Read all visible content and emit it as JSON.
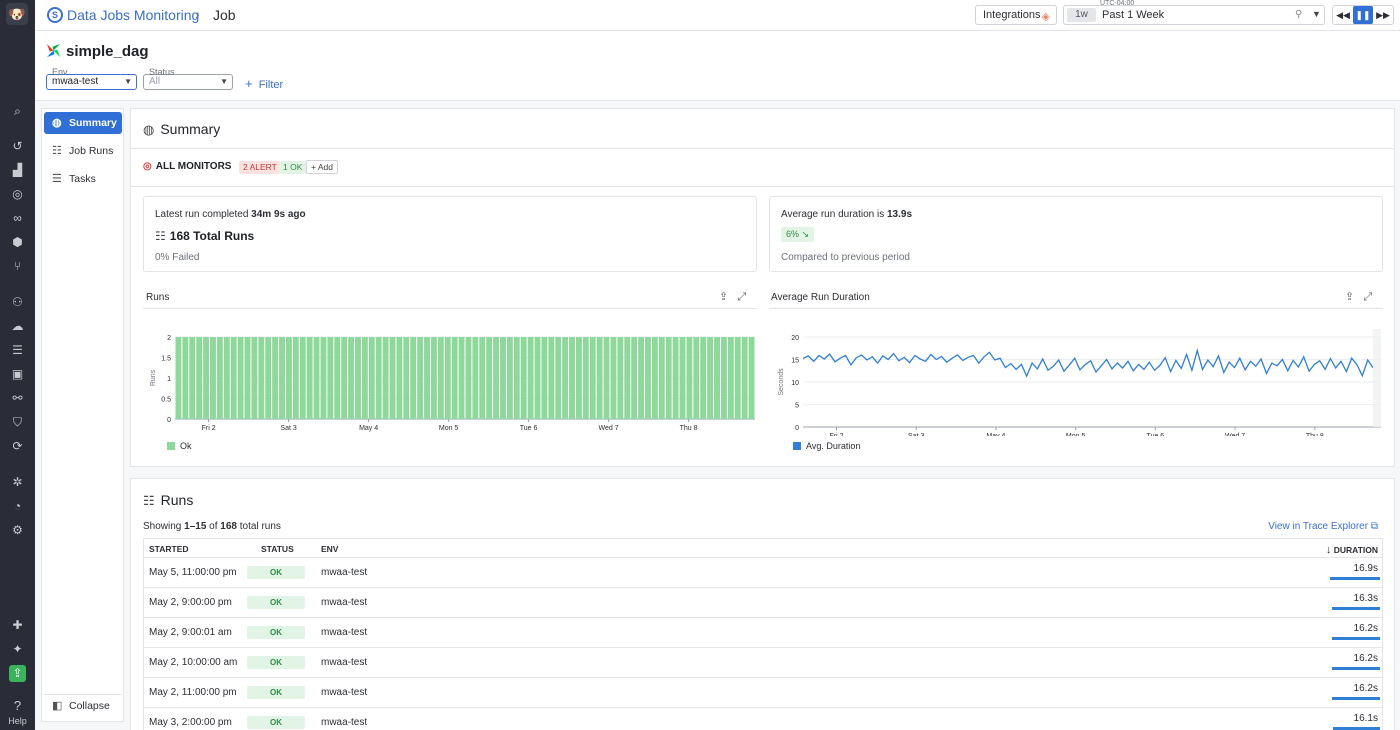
{
  "rail": {
    "icons": [
      "search-icon",
      "history-icon",
      "chart-icon",
      "monitor-icon",
      "binoculars-icon",
      "cube-icon",
      "git-icon",
      "apm-icon",
      "cloud-icon",
      "list-icon",
      "dashboard-icon",
      "link-icon",
      "shield-icon",
      "refresh-icon",
      "bug-icon",
      "gauge-icon",
      "robot-icon",
      "puzzle-icon",
      "sparkle-icon",
      "upload-icon"
    ],
    "help_label": "Help"
  },
  "topbar": {
    "breadcrumb_root": "Data Jobs Monitoring",
    "breadcrumb_current": "Job",
    "integrations_label": "Integrations",
    "timezone": "UTC-04:00",
    "time_tag": "1w",
    "time_value": "Past 1 Week"
  },
  "header": {
    "title": "simple_dag",
    "env_label": "Env",
    "env_value": "mwaa-test",
    "status_label": "Status",
    "status_placeholder": "All",
    "filter_label": "Filter"
  },
  "sidenav": {
    "items": [
      {
        "label": "Summary",
        "icon": "globe-icon",
        "active": true
      },
      {
        "label": "Job Runs",
        "icon": "runs-icon",
        "active": false
      },
      {
        "label": "Tasks",
        "icon": "tasks-icon",
        "active": false
      }
    ],
    "collapse_label": "Collapse"
  },
  "summary": {
    "title": "Summary",
    "monitors_label": "ALL MONITORS",
    "alert_badge": "2 ALERT",
    "ok_badge": "1 OK",
    "add_label": "Add",
    "latest_prefix": "Latest run completed",
    "latest_value": "34m 9s ago",
    "total_runs": "168 Total Runs",
    "failed": "0% Failed",
    "avg_prefix": "Average run duration is",
    "avg_value": "13.9s",
    "change": "6% ↘",
    "compared": "Compared to previous period"
  },
  "chart_data": [
    {
      "type": "bar",
      "title": "Runs",
      "ylabel": "Runs",
      "ylim": [
        0,
        2
      ],
      "yticks": [
        "0",
        "0.5",
        "1",
        "1.5",
        "2"
      ],
      "xticks": [
        "Fri 2",
        "Sat 3",
        "May 4",
        "Mon 5",
        "Tue 6",
        "Wed 7",
        "Thu 8"
      ],
      "series": [
        {
          "name": "Ok",
          "color": "#8fd89c",
          "values": [
            2,
            2,
            2,
            2,
            2,
            2,
            2,
            2,
            2,
            2,
            2,
            2,
            2,
            2,
            2,
            2,
            2,
            2,
            2,
            2,
            2,
            2,
            2,
            2,
            2,
            2,
            2,
            2,
            2,
            2,
            2,
            2,
            2,
            2,
            2,
            2,
            2,
            2,
            2,
            2,
            2,
            2,
            2,
            2,
            2,
            2,
            2,
            2,
            2,
            2,
            2,
            2,
            2,
            2,
            2,
            2,
            2,
            2,
            2,
            2,
            2,
            2,
            2,
            2,
            2,
            2,
            2,
            2,
            2,
            2,
            2,
            2,
            2,
            2,
            2,
            2,
            2,
            2,
            2,
            2,
            2,
            2,
            2,
            2
          ]
        }
      ],
      "grid": true,
      "legend": "bottom-left"
    },
    {
      "type": "line",
      "title": "Average Run Duration",
      "ylabel": "Seconds",
      "ylim": [
        0,
        20
      ],
      "yticks": [
        "0",
        "5",
        "10",
        "15",
        "20"
      ],
      "xticks": [
        "Fri 2",
        "Sat 3",
        "May 4",
        "Mon 5",
        "Tue 6",
        "Wed 7",
        "Thu 8"
      ],
      "series": [
        {
          "name": "Avg. Duration",
          "color": "#2f7fd6",
          "values": [
            15.2,
            15.8,
            14.6,
            15.9,
            15.1,
            16.2,
            14.5,
            15.3,
            15.9,
            13.8,
            15.4,
            16.0,
            14.9,
            15.6,
            14.2,
            15.8,
            15.0,
            16.3,
            14.7,
            15.5,
            14.3,
            15.9,
            15.1,
            14.6,
            16.1,
            15.0,
            15.7,
            14.4,
            15.3,
            16.0,
            14.8,
            15.5,
            15.9,
            14.2,
            15.6,
            16.6,
            14.9,
            15.3,
            13.2,
            14.1,
            12.8,
            13.9,
            11.3,
            14.2,
            12.9,
            15.1,
            12.6,
            13.5,
            14.9,
            12.4,
            13.8,
            15.3,
            12.7,
            13.9,
            14.7,
            12.2,
            13.6,
            15.0,
            12.9,
            14.2,
            13.1,
            14.6,
            12.5,
            13.9,
            12.8,
            14.4,
            12.6,
            13.7,
            15.4,
            12.3,
            14.8,
            13.0,
            16.1,
            12.6,
            17.0,
            12.8,
            14.9,
            13.4,
            15.8,
            12.1,
            14.4,
            13.2,
            15.3,
            12.7,
            14.6,
            13.5,
            15.1,
            11.9,
            14.2,
            13.6,
            15.0,
            12.5,
            14.8,
            13.3,
            15.6,
            12.4,
            13.9,
            14.7,
            12.8,
            15.2,
            13.1,
            14.6,
            12.3,
            15.3,
            13.8,
            11.4,
            14.9,
            13.2
          ]
        }
      ],
      "grid": true,
      "legend": "bottom-left"
    }
  ],
  "runs": {
    "title": "Runs",
    "showing_prefix": "Showing",
    "showing_range": "1–15",
    "showing_of": "of",
    "showing_total": "168",
    "showing_suffix": "total runs",
    "trace_link": "View in Trace Explorer",
    "headers": {
      "started": "STARTED",
      "status": "STATUS",
      "env": "ENV",
      "duration": "DURATION"
    },
    "rows": [
      {
        "started": "May 5, 11:00:00 pm",
        "status": "OK",
        "env": "mwaa-test",
        "duration": "16.9s",
        "fraction": 1.0
      },
      {
        "started": "May 2, 9:00:00 pm",
        "status": "OK",
        "env": "mwaa-test",
        "duration": "16.3s",
        "fraction": 0.96
      },
      {
        "started": "May 2, 9:00:01 am",
        "status": "OK",
        "env": "mwaa-test",
        "duration": "16.2s",
        "fraction": 0.96
      },
      {
        "started": "May 2, 10:00:00 am",
        "status": "OK",
        "env": "mwaa-test",
        "duration": "16.2s",
        "fraction": 0.96
      },
      {
        "started": "May 2, 11:00:00 pm",
        "status": "OK",
        "env": "mwaa-test",
        "duration": "16.2s",
        "fraction": 0.96
      },
      {
        "started": "May 3, 2:00:00 pm",
        "status": "OK",
        "env": "mwaa-test",
        "duration": "16.1s",
        "fraction": 0.95
      }
    ]
  }
}
